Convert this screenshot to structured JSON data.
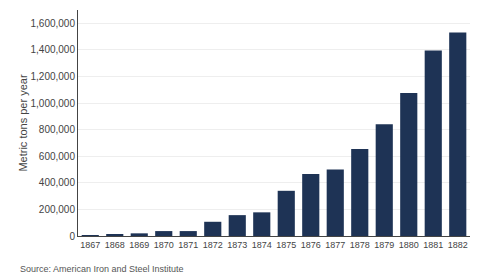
{
  "chart_data": {
    "type": "bar",
    "categories": [
      "1867",
      "1868",
      "1869",
      "1870",
      "1871",
      "1872",
      "1873",
      "1874",
      "1875",
      "1876",
      "1877",
      "1878",
      "1879",
      "1880",
      "1881",
      "1882"
    ],
    "values": [
      2000,
      8500,
      20000,
      37000,
      37000,
      107000,
      157000,
      178000,
      340000,
      467000,
      500000,
      655000,
      840000,
      1075000,
      1395000,
      1530000
    ],
    "color": "#1e3355",
    "ylabel": "Metric tons per year",
    "ylim": [
      0,
      1700000
    ],
    "yticks": [
      0,
      {
        "value": 200000,
        "label": "200,000"
      },
      {
        "value": 400000,
        "label": "400,000"
      },
      {
        "value": 600000,
        "label": "600,000"
      },
      {
        "value": 800000,
        "label": "800,000"
      },
      {
        "value": 1000000,
        "label": "1,000,000"
      },
      {
        "value": 1200000,
        "label": "1,200,000"
      },
      {
        "value": 1400000,
        "label": "1,400,000"
      },
      {
        "value": 1600000,
        "label": "1,600,000"
      }
    ],
    "grid": true,
    "annotation": "Source: American Iron and Steel Institute"
  }
}
